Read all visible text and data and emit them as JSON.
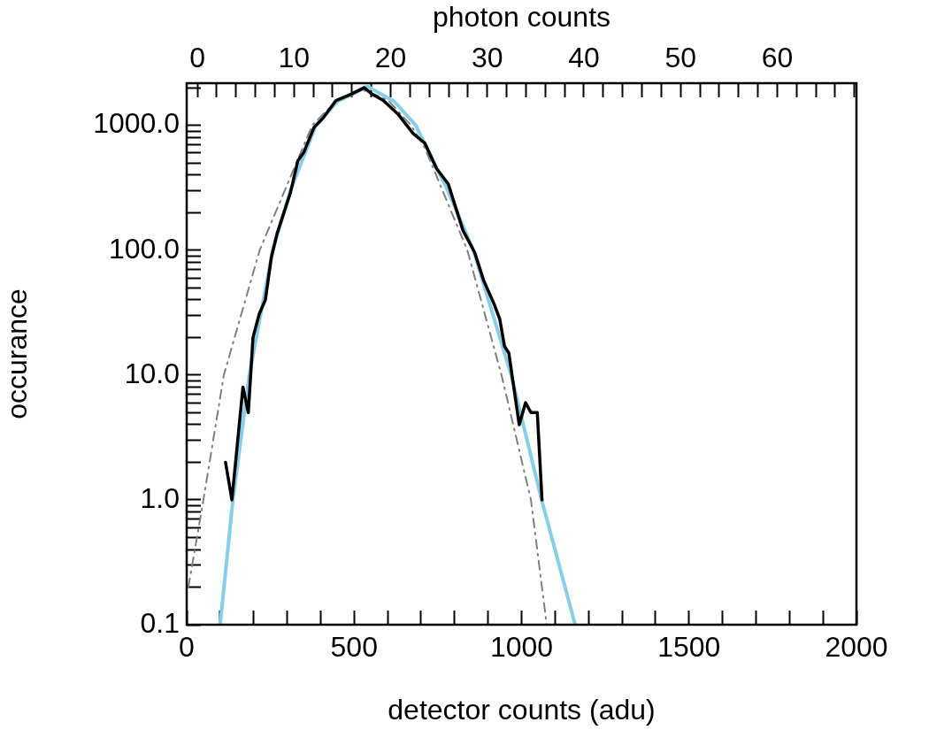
{
  "chart_data": {
    "type": "line",
    "xlabel": "detector counts (adu)",
    "ylabel": "occurance",
    "x2label": "photon counts",
    "log": "y",
    "grid": false,
    "legend": false,
    "marker": "none",
    "xlim": [
      0,
      2000
    ],
    "xticks": [
      0,
      {
        "value": 100,
        "label": null
      },
      {
        "value": 200,
        "label": null
      },
      {
        "value": 300,
        "label": null
      },
      {
        "value": 400,
        "label": null
      },
      500,
      {
        "value": 600,
        "label": null
      },
      {
        "value": 700,
        "label": null
      },
      {
        "value": 800,
        "label": null
      },
      {
        "value": 900,
        "label": null
      },
      1000,
      {
        "value": 1100,
        "label": null
      },
      {
        "value": 1200,
        "label": null
      },
      {
        "value": 1300,
        "label": null
      },
      {
        "value": 1400,
        "label": null
      },
      1500,
      {
        "value": 1600,
        "label": null
      },
      {
        "value": 1700,
        "label": null
      },
      {
        "value": 1800,
        "label": null
      },
      {
        "value": 1900,
        "label": null
      },
      2000
    ],
    "x2lim": [
      -1.1,
      68.2
    ],
    "x2ticks": [
      0,
      {
        "value": 2,
        "label": null
      },
      {
        "value": 4,
        "label": null
      },
      {
        "value": 6,
        "label": null
      },
      {
        "value": 8,
        "label": null
      },
      10,
      {
        "value": 12,
        "label": null
      },
      {
        "value": 14,
        "label": null
      },
      {
        "value": 16,
        "label": null
      },
      {
        "value": 18,
        "label": null
      },
      20,
      {
        "value": 22,
        "label": null
      },
      {
        "value": 24,
        "label": null
      },
      {
        "value": 26,
        "label": null
      },
      {
        "value": 28,
        "label": null
      },
      30,
      {
        "value": 32,
        "label": null
      },
      {
        "value": 34,
        "label": null
      },
      {
        "value": 36,
        "label": null
      },
      {
        "value": 38,
        "label": null
      },
      40,
      {
        "value": 42,
        "label": null
      },
      {
        "value": 44,
        "label": null
      },
      {
        "value": 46,
        "label": null
      },
      {
        "value": 48,
        "label": null
      },
      50,
      {
        "value": 52,
        "label": null
      },
      {
        "value": 54,
        "label": null
      },
      {
        "value": 56,
        "label": null
      },
      {
        "value": 58,
        "label": null
      },
      60,
      {
        "value": 62,
        "label": null
      },
      {
        "value": 64,
        "label": null
      },
      {
        "value": 66,
        "label": null
      },
      {
        "value": 68,
        "label": null
      }
    ],
    "ylim": [
      0.1,
      2175
    ],
    "yticks": [
      {
        "value": 0.1,
        "label": "0.1"
      },
      {
        "value": 0.2,
        "label": null
      },
      {
        "value": 0.3,
        "label": null
      },
      {
        "value": 0.4,
        "label": null
      },
      {
        "value": 0.5,
        "label": null
      },
      {
        "value": 0.6,
        "label": null
      },
      {
        "value": 0.7,
        "label": null
      },
      {
        "value": 0.8,
        "label": null
      },
      {
        "value": 0.9,
        "label": null
      },
      {
        "value": 1,
        "label": "1.0"
      },
      {
        "value": 2,
        "label": null
      },
      {
        "value": 3,
        "label": null
      },
      {
        "value": 4,
        "label": null
      },
      {
        "value": 5,
        "label": null
      },
      {
        "value": 6,
        "label": null
      },
      {
        "value": 7,
        "label": null
      },
      {
        "value": 8,
        "label": null
      },
      {
        "value": 9,
        "label": null
      },
      {
        "value": 10,
        "label": "10.0"
      },
      {
        "value": 20,
        "label": null
      },
      {
        "value": 30,
        "label": null
      },
      {
        "value": 40,
        "label": null
      },
      {
        "value": 50,
        "label": null
      },
      {
        "value": 60,
        "label": null
      },
      {
        "value": 70,
        "label": null
      },
      {
        "value": 80,
        "label": null
      },
      {
        "value": 90,
        "label": null
      },
      {
        "value": 100,
        "label": "100.0"
      },
      {
        "value": 200,
        "label": null
      },
      {
        "value": 300,
        "label": null
      },
      {
        "value": 400,
        "label": null
      },
      {
        "value": 500,
        "label": null
      },
      {
        "value": 600,
        "label": null
      },
      {
        "value": 700,
        "label": null
      },
      {
        "value": 800,
        "label": null
      },
      {
        "value": 900,
        "label": null
      },
      {
        "value": 1000,
        "label": "1000.0"
      },
      {
        "value": 2000,
        "label": null
      }
    ],
    "series": [
      {
        "color": "#000000",
        "line_style": "solid",
        "x": [
          116,
          135,
          168,
          184,
          198,
          217,
          235,
          253,
          270,
          310,
          332,
          350,
          380,
          407,
          446,
          490,
          530,
          552,
          587,
          631,
          676,
          711,
          746,
          781,
          825,
          860,
          887,
          918,
          935,
          949,
          962,
          993,
          1012,
          1028,
          1047,
          1061
        ],
        "values": [
          2,
          1,
          8,
          5,
          20,
          31,
          40,
          88,
          136,
          290,
          520,
          610,
          960,
          1140,
          1580,
          1770,
          2000,
          1790,
          1580,
          1230,
          860,
          720,
          450,
          340,
          144,
          96,
          57,
          37,
          28,
          17,
          15,
          4,
          6,
          5,
          5,
          1
        ]
      },
      {
        "color": "#87ceeb",
        "line_style": "solid",
        "x": [
          100,
          138,
          187,
          257,
          310,
          386,
          450,
          540,
          620,
          684,
          780,
          856,
          969,
          1060,
          1160
        ],
        "values": [
          0.1,
          1,
          10,
          100,
          300,
          1000,
          1550,
          2050,
          1550,
          1000,
          300,
          100,
          10,
          1,
          0.1
        ]
      },
      {
        "color": "#808080",
        "line_style": "dashdot",
        "x": [
          5,
          50,
          111,
          218,
          340,
          375,
          450,
          520,
          600,
          670,
          711,
          838,
          940,
          1028,
          1075
        ],
        "values": [
          0.2,
          1,
          10,
          100,
          600,
          1000,
          1600,
          1950,
          1600,
          1000,
          660,
          100,
          10,
          1,
          0.1
        ]
      }
    ]
  }
}
